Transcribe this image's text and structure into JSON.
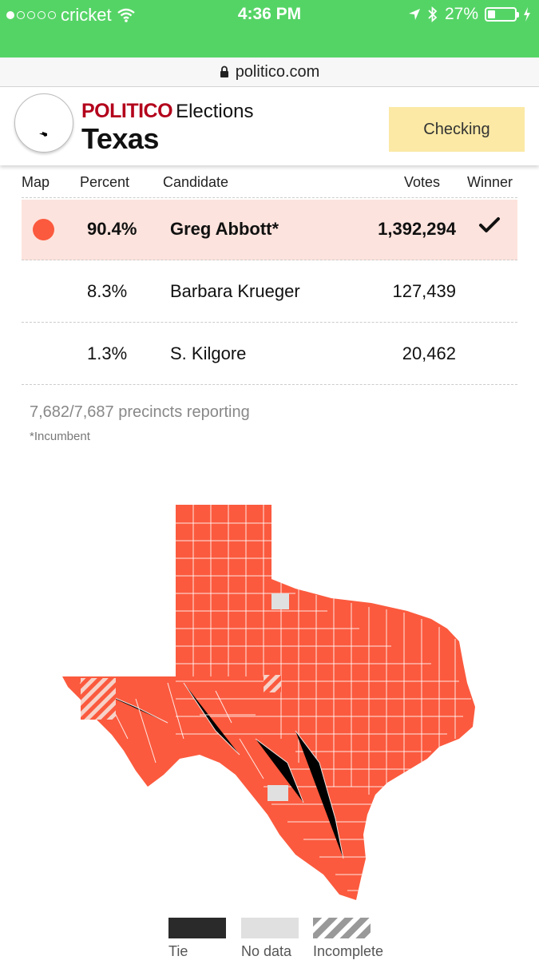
{
  "status_bar": {
    "carrier": "cricket",
    "time": "4:36 PM",
    "battery": "27%",
    "battery_level": 0.27,
    "signal_bars_filled": 1,
    "signal_bars_total": 5,
    "icons": [
      "wifi-icon",
      "location-arrow-icon",
      "bluetooth-icon",
      "battery-icon",
      "charging-bolt-icon"
    ],
    "bar_color": "#55d466"
  },
  "browser": {
    "url": "politico.com",
    "icons": [
      "lock-icon"
    ]
  },
  "header": {
    "brand_politico": "POLITICO",
    "brand_elections": "Elections",
    "state": "Texas",
    "checking_button": "Checking",
    "brand_color": "#b3001b",
    "button_color": "#fbe9a5"
  },
  "results": {
    "columns": {
      "map": "Map",
      "percent": "Percent",
      "candidate": "Candidate",
      "votes": "Votes",
      "winner": "Winner"
    },
    "rows": [
      {
        "percent": "90.4%",
        "candidate": "Greg Abbott*",
        "votes": "1,392,294",
        "winner": true,
        "color": "#fb5a3e"
      },
      {
        "percent": "8.3%",
        "candidate": "Barbara Krueger",
        "votes": "127,439",
        "winner": false
      },
      {
        "percent": "1.3%",
        "candidate": "S. Kilgore",
        "votes": "20,462",
        "winner": false
      }
    ],
    "winner_row_color": "#fde3dd",
    "precincts": "7,682/7,687 precincts reporting",
    "footnote": "*Incumbent"
  },
  "map": {
    "fill_color": "#fb5a3e",
    "no_data_color": "#e0e0e0"
  },
  "legend": {
    "tie": "Tie",
    "no_data": "No data",
    "incomplete": "Incomplete",
    "tie_color": "#2a2a2a",
    "no_data_color": "#e0e0e0",
    "incomplete_color": "#999999"
  }
}
